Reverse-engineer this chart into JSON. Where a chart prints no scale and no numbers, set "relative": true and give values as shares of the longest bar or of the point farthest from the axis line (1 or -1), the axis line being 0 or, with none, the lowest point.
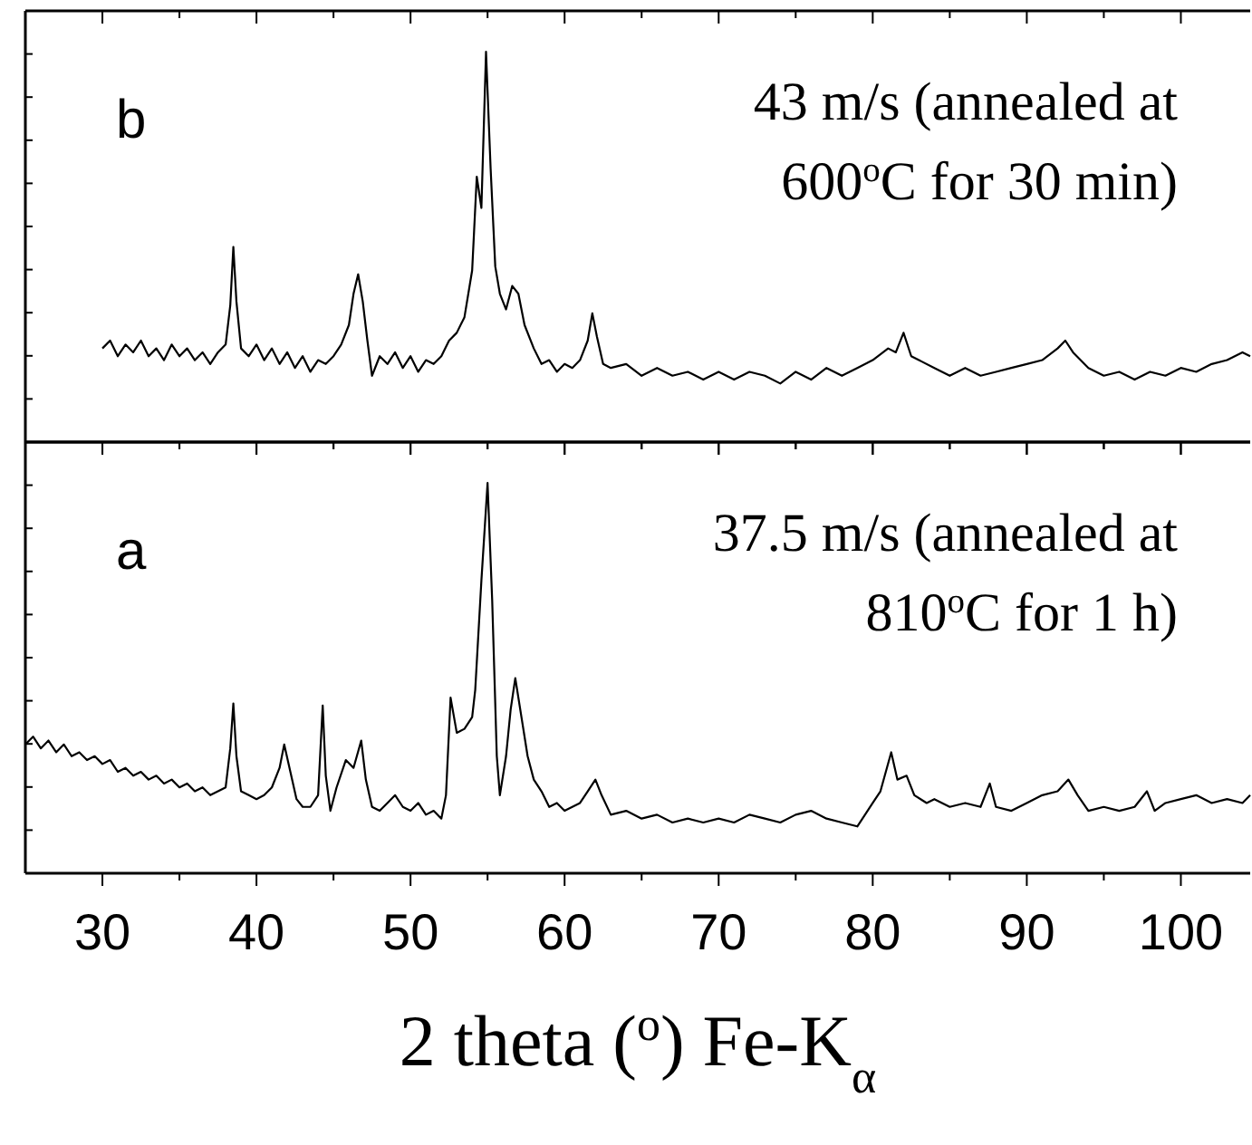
{
  "chart_data": [
    {
      "type": "line",
      "relative": true,
      "xlim": [
        25,
        104.5
      ],
      "xticks": [
        30,
        {
          "value": 35,
          "label": null
        },
        40,
        {
          "value": 45,
          "label": null
        },
        50,
        {
          "value": 55,
          "label": null
        },
        60,
        {
          "value": 65,
          "label": null
        },
        70,
        {
          "value": 75,
          "label": null
        },
        80,
        {
          "value": 85,
          "label": null
        },
        90,
        {
          "value": 95,
          "label": null
        },
        100
      ],
      "tick_labels": false,
      "annotations": [
        "b",
        "43 m/s (annealed at\n600$^{o}$C for 30 min)"
      ],
      "series": [
        {
          "color": "#000000",
          "x": [
            30,
            30.5,
            31,
            31.5,
            32,
            32.5,
            33,
            33.5,
            34,
            34.5,
            35,
            35.5,
            36,
            36.5,
            37,
            37.5,
            38,
            38.3,
            38.5,
            38.7,
            39,
            39.5,
            40,
            40.5,
            41,
            41.5,
            42,
            42.5,
            43,
            43.5,
            44,
            44.5,
            45,
            45.5,
            46,
            46.3,
            46.6,
            46.9,
            47.2,
            47.5,
            48,
            48.5,
            49,
            49.5,
            50,
            50.5,
            51,
            51.5,
            52,
            52.5,
            53,
            53.5,
            54,
            54.3,
            54.6,
            54.9,
            55.2,
            55.5,
            55.8,
            56.2,
            56.6,
            57,
            57.4,
            58,
            58.5,
            59,
            59.5,
            60,
            60.5,
            61,
            61.5,
            61.8,
            62.1,
            62.5,
            63,
            64,
            65,
            66,
            67,
            68,
            69,
            70,
            71,
            72,
            73,
            74,
            75,
            76,
            77,
            78,
            79,
            80,
            81,
            81.5,
            82,
            82.5,
            83,
            84,
            85,
            86,
            87,
            88,
            89,
            90,
            91,
            92,
            92.5,
            93,
            94,
            95,
            96,
            97,
            98,
            99,
            100,
            101,
            102,
            103,
            104,
            104.5
          ],
          "values": [
            0.24,
            0.26,
            0.22,
            0.25,
            0.23,
            0.26,
            0.22,
            0.24,
            0.21,
            0.25,
            0.22,
            0.24,
            0.21,
            0.23,
            0.2,
            0.23,
            0.25,
            0.35,
            0.5,
            0.36,
            0.24,
            0.22,
            0.25,
            0.21,
            0.24,
            0.2,
            0.23,
            0.19,
            0.22,
            0.18,
            0.21,
            0.2,
            0.22,
            0.25,
            0.3,
            0.38,
            0.43,
            0.36,
            0.26,
            0.17,
            0.22,
            0.2,
            0.23,
            0.19,
            0.22,
            0.18,
            0.21,
            0.2,
            0.22,
            0.26,
            0.28,
            0.32,
            0.44,
            0.68,
            0.6,
            1.0,
            0.7,
            0.45,
            0.38,
            0.34,
            0.4,
            0.38,
            0.3,
            0.24,
            0.2,
            0.21,
            0.18,
            0.2,
            0.19,
            0.21,
            0.26,
            0.33,
            0.27,
            0.2,
            0.19,
            0.2,
            0.17,
            0.19,
            0.17,
            0.18,
            0.16,
            0.18,
            0.16,
            0.18,
            0.17,
            0.15,
            0.18,
            0.16,
            0.19,
            0.17,
            0.19,
            0.21,
            0.24,
            0.23,
            0.28,
            0.22,
            0.21,
            0.19,
            0.17,
            0.19,
            0.17,
            0.18,
            0.19,
            0.2,
            0.21,
            0.24,
            0.26,
            0.23,
            0.19,
            0.17,
            0.18,
            0.16,
            0.18,
            0.17,
            0.19,
            0.18,
            0.2,
            0.21,
            0.23,
            0.22
          ]
        }
      ]
    },
    {
      "type": "line",
      "relative": true,
      "xlim": [
        25,
        104.5
      ],
      "xticks": [
        30,
        {
          "value": 35,
          "label": null
        },
        40,
        {
          "value": 45,
          "label": null
        },
        50,
        {
          "value": 55,
          "label": null
        },
        60,
        {
          "value": 65,
          "label": null
        },
        70,
        {
          "value": 75,
          "label": null
        },
        80,
        {
          "value": 85,
          "label": null
        },
        90,
        {
          "value": 95,
          "label": null
        },
        100
      ],
      "tick_labels": "x",
      "xlabel": "2 theta ($^{o}$) Fe-K$_{α}$",
      "annotations": [
        "a",
        "37.5 m/s (annealed at\n810$^{o}$C for 1 h)"
      ],
      "series": [
        {
          "color": "#000000",
          "x": [
            25,
            25.5,
            26,
            26.5,
            27,
            27.5,
            28,
            28.5,
            29,
            29.5,
            30,
            30.5,
            31,
            31.5,
            32,
            32.5,
            33,
            33.5,
            34,
            34.5,
            35,
            35.5,
            36,
            36.5,
            37,
            37.5,
            38,
            38.3,
            38.5,
            38.7,
            39,
            39.5,
            40,
            40.5,
            41,
            41.5,
            41.8,
            42.2,
            42.6,
            43,
            43.5,
            44,
            44.3,
            44.5,
            44.8,
            45.2,
            45.8,
            46.3,
            46.8,
            47.1,
            47.5,
            48,
            48.5,
            49,
            49.5,
            50,
            50.5,
            51,
            51.5,
            52,
            52.3,
            52.6,
            53,
            53.5,
            54,
            54.2,
            54.6,
            55,
            55.3,
            55.6,
            55.8,
            56.2,
            56.5,
            56.8,
            57.2,
            57.6,
            58,
            58.5,
            59,
            59.5,
            60,
            60.5,
            61,
            61.5,
            62,
            62.4,
            63,
            64,
            65,
            66,
            67,
            68,
            69,
            70,
            71,
            72,
            73,
            74,
            75,
            76,
            77,
            78,
            79,
            80,
            80.5,
            81.2,
            81.6,
            82.2,
            82.7,
            83.5,
            84,
            85,
            86,
            87,
            87.6,
            88,
            89,
            90,
            91,
            92,
            92.7,
            93.3,
            94,
            95,
            96,
            97,
            97.8,
            98.3,
            99,
            100,
            101,
            102,
            103,
            104,
            104.5
          ],
          "values": [
            0.33,
            0.35,
            0.32,
            0.34,
            0.31,
            0.33,
            0.3,
            0.31,
            0.29,
            0.3,
            0.28,
            0.29,
            0.26,
            0.27,
            0.25,
            0.26,
            0.24,
            0.25,
            0.23,
            0.24,
            0.22,
            0.23,
            0.21,
            0.22,
            0.2,
            0.21,
            0.22,
            0.32,
            0.435,
            0.3,
            0.21,
            0.2,
            0.19,
            0.2,
            0.22,
            0.27,
            0.33,
            0.26,
            0.19,
            0.17,
            0.17,
            0.2,
            0.43,
            0.25,
            0.16,
            0.22,
            0.29,
            0.27,
            0.34,
            0.24,
            0.17,
            0.16,
            0.18,
            0.2,
            0.17,
            0.16,
            0.18,
            0.15,
            0.16,
            0.14,
            0.2,
            0.45,
            0.36,
            0.37,
            0.4,
            0.47,
            0.75,
            1.0,
            0.7,
            0.3,
            0.2,
            0.3,
            0.42,
            0.5,
            0.4,
            0.3,
            0.24,
            0.21,
            0.17,
            0.18,
            0.16,
            0.17,
            0.18,
            0.21,
            0.24,
            0.2,
            0.15,
            0.16,
            0.14,
            0.15,
            0.13,
            0.14,
            0.13,
            0.14,
            0.13,
            0.15,
            0.14,
            0.13,
            0.15,
            0.16,
            0.14,
            0.13,
            0.12,
            0.18,
            0.21,
            0.31,
            0.24,
            0.25,
            0.2,
            0.18,
            0.19,
            0.17,
            0.18,
            0.17,
            0.23,
            0.17,
            0.16,
            0.18,
            0.2,
            0.21,
            0.24,
            0.2,
            0.16,
            0.17,
            0.16,
            0.17,
            0.21,
            0.16,
            0.18,
            0.19,
            0.2,
            0.18,
            0.19,
            0.18,
            0.2
          ]
        }
      ]
    }
  ]
}
